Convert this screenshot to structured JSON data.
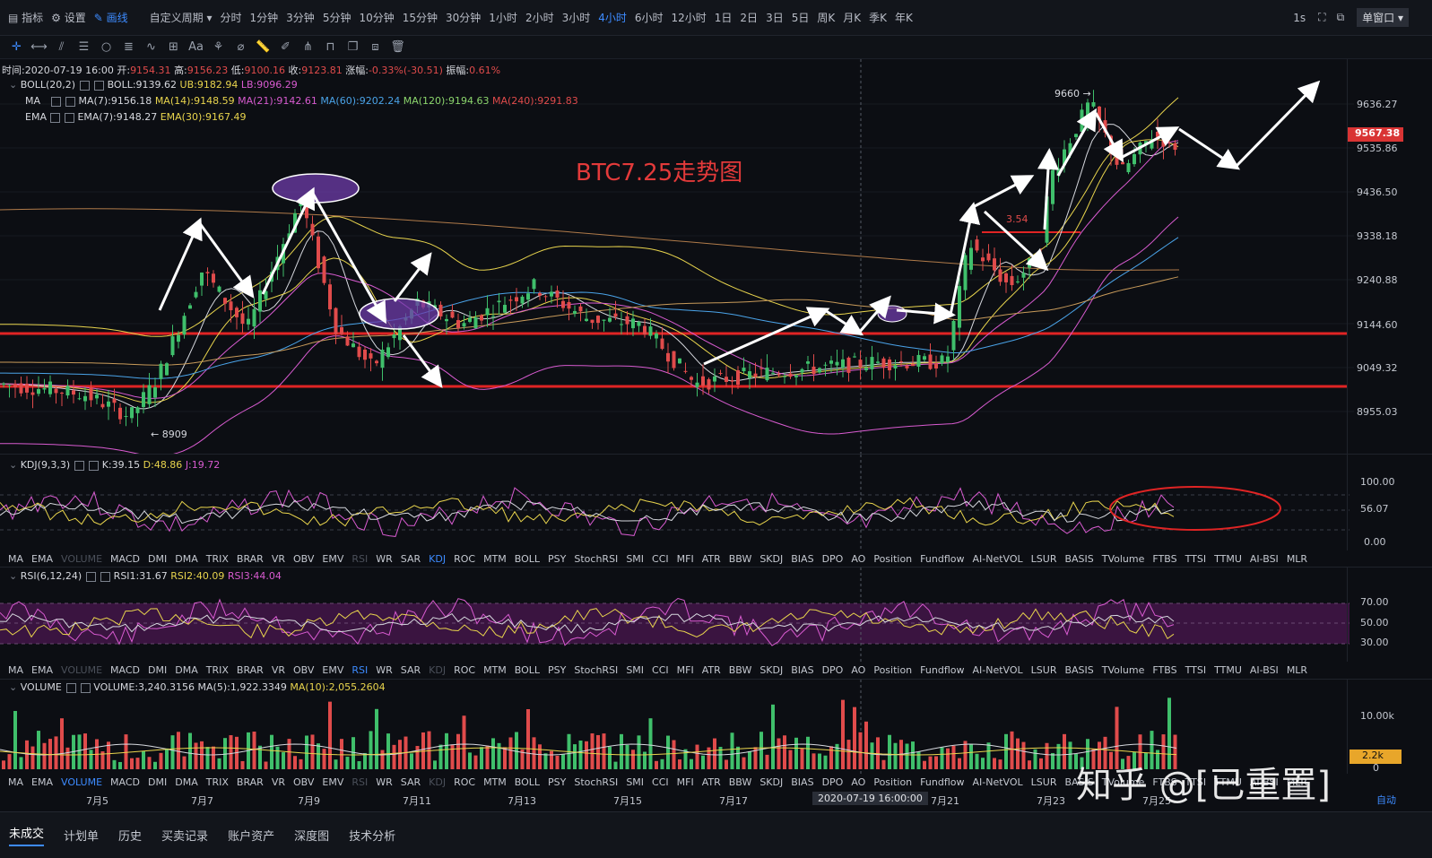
{
  "topbar": {
    "indicator": "指标",
    "settings": "设置",
    "draw": "画线",
    "custom_period": "自定义周期",
    "periods": [
      "分时",
      "1分钟",
      "3分钟",
      "5分钟",
      "10分钟",
      "15分钟",
      "30分钟",
      "1小时",
      "2小时",
      "3小时",
      "4小时",
      "6小时",
      "12小时",
      "1日",
      "2日",
      "3日",
      "5日",
      "周K",
      "月K",
      "季K",
      "年K"
    ],
    "selected_period": "4小时",
    "interval": "1s",
    "window_mode": "单窗口"
  },
  "drawbar": {
    "text_tool": "Aa"
  },
  "ohlc": {
    "time": "时间:2020-07-19 16:00",
    "open_label": "开:",
    "open": "9154.31",
    "high_label": "高:",
    "high": "9156.23",
    "low_label": "低:",
    "low": "9100.16",
    "close_label": "收:",
    "close": "9123.81",
    "change_label": "涨幅:",
    "change": "-0.33%(-30.51)",
    "amp_label": "振幅:",
    "amp": "0.61%"
  },
  "boll": {
    "name": "BOLL(20,2)",
    "mid": "BOLL:9139.62",
    "ub": "UB:9182.94",
    "lb": "LB:9096.29"
  },
  "ma": {
    "name": "MA",
    "ma7": "MA(7):9156.18",
    "ma14": "MA(14):9148.59",
    "ma21": "MA(21):9142.61",
    "ma60": "MA(60):9202.24",
    "ma120": "MA(120):9194.63",
    "ma240": "MA(240):9291.83"
  },
  "ema": {
    "name": "EMA",
    "ema7": "EMA(7):9148.27",
    "ema30": "EMA(30):9167.49"
  },
  "annotations": {
    "title": "BTC7.25走势图",
    "high_mark": "9660 →",
    "low_mark": "← 8909",
    "mid_label": "3.54"
  },
  "price_axis": [
    "9636.27",
    "9535.86",
    "9436.50",
    "9338.18",
    "9240.88",
    "9144.60",
    "9049.32",
    "8955.03"
  ],
  "last_price": "9567.38",
  "kdj": {
    "name": "KDJ(9,3,3)",
    "k": "K:39.15",
    "d": "D:48.86",
    "j": "J:19.72",
    "axis": [
      "100.00",
      "56.07",
      "0.00"
    ]
  },
  "rsi": {
    "name": "RSI(6,12,24)",
    "r1": "RSI1:31.67",
    "r2": "RSI2:40.09",
    "r3": "RSI3:44.04",
    "axis": [
      "70.00",
      "50.00",
      "30.00"
    ]
  },
  "volume": {
    "name": "VOLUME",
    "v": "VOLUME:3,240.3156",
    "ma5": "MA(5):1,922.3349",
    "ma10": "MA(10):2,055.2604",
    "axis": [
      "10.00k",
      "2.2k",
      "0"
    ]
  },
  "indicator_tabs": [
    "MA",
    "EMA",
    "VOLUME",
    "MACD",
    "DMI",
    "DMA",
    "TRIX",
    "BRAR",
    "VR",
    "OBV",
    "EMV",
    "RSI",
    "WR",
    "SAR",
    "KDJ",
    "ROC",
    "MTM",
    "BOLL",
    "PSY",
    "StochRSI",
    "SMI",
    "CCI",
    "MFI",
    "ATR",
    "BBW",
    "SKDJ",
    "BIAS",
    "DPO",
    "AO",
    "Position",
    "Fundflow",
    "AI-NetVOL",
    "LSUR",
    "BASIS",
    "TVolume",
    "FTBS",
    "TTSI",
    "TTMU",
    "AI-BSI",
    "MLR"
  ],
  "date_axis": [
    "7月5",
    "7月7",
    "7月9",
    "7月11",
    "7月13",
    "7月15",
    "7月17",
    "7月21",
    "7月23",
    "7月25"
  ],
  "cursor_time": "2020-07-19 16:00:00",
  "watermark": "知乎 @[已重置]",
  "auto_label": "自动",
  "bottombar": {
    "tabs": [
      "未成交",
      "计划单",
      "历史",
      "买卖记录",
      "账户资产",
      "深度图",
      "技术分析"
    ]
  }
}
